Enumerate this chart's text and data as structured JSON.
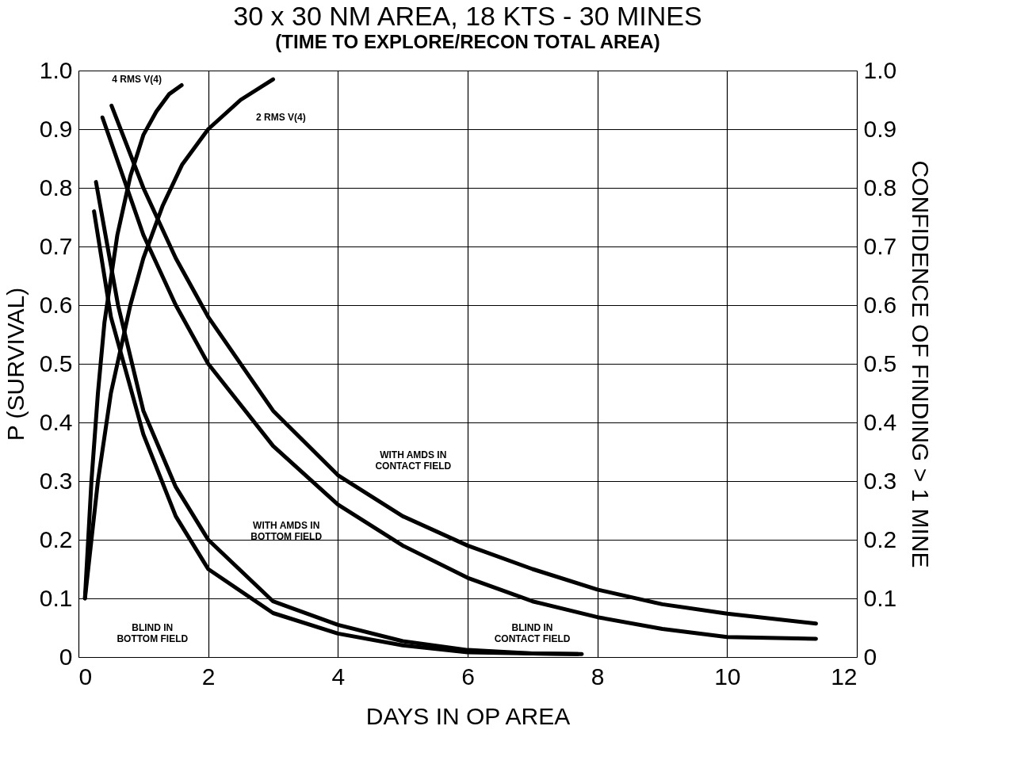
{
  "chart_data": {
    "type": "line",
    "title": "30 x 30 NM AREA, 18 KTS - 30 MINES",
    "subtitle": "(TIME TO EXPLORE/RECON TOTAL AREA)",
    "xlabel": "DAYS IN OP AREA",
    "ylabel": "P (SURVIVAL)",
    "y2label": "CONFIDENCE OF FINDING > 1 MINE",
    "xlim": [
      0,
      12
    ],
    "xticks": [
      0,
      2,
      4,
      6,
      8,
      10,
      12
    ],
    "ylim": [
      0,
      1
    ],
    "yticks": [
      0,
      0.1,
      0.2,
      0.3,
      0.4,
      0.5,
      0.6,
      0.7,
      0.8,
      0.9,
      {
        "value": 1,
        "label": "1.0"
      }
    ],
    "y2lim": [
      0,
      1
    ],
    "y2ticks": [
      0,
      0.1,
      0.2,
      0.3,
      0.4,
      0.5,
      0.6,
      0.7,
      0.8,
      0.9,
      {
        "value": 1,
        "label": "1.0"
      }
    ],
    "grid": true,
    "line_style": "solid",
    "marker": "none",
    "series": [
      {
        "color": "#000000",
        "x": [
          0.1,
          0.2,
          0.3,
          0.4,
          0.6,
          0.8,
          1.0,
          1.2,
          1.4,
          1.59
        ],
        "values": [
          0.1,
          0.3,
          0.45,
          0.57,
          0.72,
          0.82,
          0.89,
          0.93,
          0.96,
          0.975
        ]
      },
      {
        "color": "#000000",
        "x": [
          0.1,
          0.3,
          0.5,
          0.8,
          1.0,
          1.3,
          1.6,
          2.0,
          2.5,
          3.0
        ],
        "values": [
          0.1,
          0.3,
          0.45,
          0.6,
          0.68,
          0.77,
          0.84,
          0.9,
          0.95,
          0.985
        ]
      },
      {
        "color": "#000000",
        "x": [
          0.51,
          1.0,
          1.5,
          2.0,
          3.0,
          4.0,
          5.0,
          6.0,
          7.0,
          8.0,
          9.0,
          10.0,
          11.37
        ],
        "values": [
          0.94,
          0.8,
          0.68,
          0.58,
          0.42,
          0.31,
          0.24,
          0.19,
          0.15,
          0.115,
          0.09,
          0.074,
          0.057
        ]
      },
      {
        "color": "#000000",
        "x": [
          0.37,
          1.0,
          1.5,
          2.0,
          3.0,
          4.0,
          5.0,
          6.0,
          7.0,
          8.0,
          9.0,
          10.0,
          11.37
        ],
        "values": [
          0.92,
          0.72,
          0.6,
          0.5,
          0.36,
          0.26,
          0.19,
          0.135,
          0.095,
          0.068,
          0.048,
          0.034,
          0.031
        ]
      },
      {
        "color": "#000000",
        "x": [
          0.27,
          0.61,
          1.0,
          1.5,
          2.0,
          3.0,
          4.0,
          5.0,
          6.0,
          7.0,
          7.76
        ],
        "values": [
          0.81,
          0.6,
          0.42,
          0.29,
          0.2,
          0.095,
          0.055,
          0.027,
          0.012,
          0.006,
          0.005
        ]
      },
      {
        "color": "#000000",
        "x": [
          0.24,
          0.5,
          1.0,
          1.5,
          2.0,
          3.0,
          4.0,
          5.0,
          6.0,
          7.0,
          7.7
        ],
        "values": [
          0.76,
          0.58,
          0.38,
          0.24,
          0.15,
          0.075,
          0.04,
          0.02,
          0.008,
          0.006,
          0.005
        ]
      }
    ],
    "annotations": [
      "4 RMS V(4)",
      "2 RMS V(4)",
      "WITH AMDS IN\nCONTACT FIELD",
      "BLIND IN\nCONTACT FIELD",
      "WITH AMDS IN\nBOTTOM FIELD",
      "BLIND IN\nBOTTOM FIELD"
    ]
  }
}
